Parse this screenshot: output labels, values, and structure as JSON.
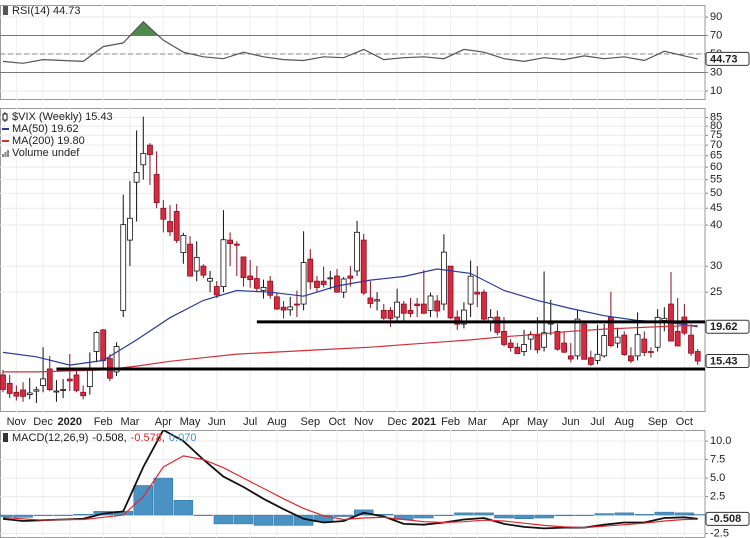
{
  "chart_data": [
    {
      "type": "line",
      "x": [
        0,
        3,
        6,
        9,
        12,
        15,
        18,
        21,
        24,
        27,
        30,
        33,
        36,
        39,
        42,
        45,
        48,
        51,
        54,
        57,
        60,
        63,
        66,
        69,
        72,
        75,
        78,
        81,
        84,
        87,
        90,
        93,
        96,
        99,
        102,
        104
      ],
      "series": [
        {
          "name": "RSI(14) 44.73",
          "color": "#555555",
          "values": [
            42,
            40,
            44,
            43,
            42,
            58,
            62,
            85,
            65,
            52,
            47,
            45,
            52,
            47,
            44,
            43,
            47,
            46,
            55,
            44,
            46,
            47,
            45,
            55,
            52,
            45,
            42,
            46,
            44,
            48,
            45,
            47,
            43,
            53,
            48,
            44.73
          ]
        }
      ],
      "badge": "44.73",
      "overbought": 70,
      "oversold": 30,
      "centerline": 50,
      "fill_color": "#4e8a4e",
      "ylim": [
        0.3,
        103
      ],
      "yticks": [
        10,
        30,
        50,
        70,
        90
      ]
    },
    {
      "type": "candlestick",
      "title": "$VIX (Weekly) 15.43",
      "log": true,
      "up_color": "#ffffff",
      "down_color": "#d62a40",
      "open": [
        14.0,
        13.2,
        12.4,
        12.6,
        12.2,
        12.5,
        13.0,
        14.6,
        12.5,
        12.6,
        13.6,
        14.0,
        12.4,
        12.9,
        16.5,
        19.2,
        15.7,
        14.3,
        22.0,
        36.0,
        54,
        61,
        70,
        57,
        45,
        41,
        44,
        33,
        35,
        29,
        30,
        27,
        26,
        26,
        36,
        35,
        32,
        28,
        27.5,
        25.3,
        27,
        24.2,
        22.5,
        22.1,
        23,
        23,
        31.5,
        27,
        27,
        27.5,
        28,
        25,
        28,
        29,
        36,
        24,
        23.5,
        22,
        22,
        21,
        23,
        22,
        23,
        23,
        22,
        23.5,
        23,
        30,
        21,
        20,
        23,
        25,
        25,
        20.3,
        21,
        19,
        17.5,
        17,
        16.5,
        18,
        18.5,
        17,
        20,
        19,
        17.5,
        16,
        16,
        20,
        15.8,
        15.5,
        16,
        21,
        17.5,
        18.5,
        16,
        16,
        18,
        16.5,
        17,
        20.5,
        23,
        19,
        21,
        18.5,
        16.5
      ],
      "high": [
        14.5,
        14.0,
        13.0,
        13.3,
        13.7,
        12.9,
        17.0,
        16.0,
        13.5,
        13.6,
        16.2,
        14.7,
        13.0,
        16.4,
        19.0,
        19.3,
        16.2,
        17.6,
        49.5,
        54.4,
        77.6,
        85.5,
        71,
        67,
        47.7,
        46,
        46.4,
        37.9,
        37,
        35.7,
        30.4,
        29,
        27,
        44.4,
        38,
        35.7,
        32,
        31.3,
        30,
        27.3,
        28,
        25,
        23.5,
        24.2,
        25.3,
        38.3,
        33.8,
        28,
        29.9,
        29,
        29.4,
        27.8,
        30,
        41.2,
        37.6,
        27,
        25,
        23,
        22.5,
        25.6,
        23.5,
        24,
        24,
        29.2,
        24.9,
        24.5,
        37.5,
        30,
        22,
        23.3,
        31.2,
        30,
        25.5,
        22.2,
        22,
        21,
        18,
        17.5,
        19.2,
        19,
        21,
        28.9,
        23.7,
        20,
        19,
        17.5,
        22,
        20,
        16.6,
        19.9,
        20,
        25.1,
        19.5,
        19,
        17,
        21.7,
        19,
        17,
        22.2,
        22.5,
        28.8,
        24,
        23,
        20,
        16.8
      ],
      "low": [
        12.4,
        11.9,
        11.7,
        11.6,
        11.8,
        11.5,
        12.4,
        12.5,
        11.6,
        11.9,
        12.5,
        12.4,
        11.8,
        12.2,
        15.3,
        14.5,
        13.4,
        13.9,
        21,
        30,
        41,
        55,
        53,
        45,
        38,
        37,
        35.3,
        30.5,
        27.9,
        27,
        27.6,
        25,
        24,
        25,
        30,
        28,
        26,
        25.8,
        25,
        23.9,
        23.9,
        22.1,
        20.8,
        21.2,
        21,
        22,
        25.5,
        25,
        25.8,
        25.5,
        24.9,
        24,
        26,
        28,
        24.5,
        22.4,
        22,
        20.6,
        19.6,
        20.2,
        20.5,
        21,
        21,
        21.5,
        21,
        20.9,
        22,
        20.7,
        19.2,
        19.4,
        21,
        22.5,
        20.5,
        19,
        18.5,
        17.1,
        16.5,
        16.2,
        16,
        16.7,
        16.3,
        16.5,
        18.5,
        16.6,
        16.3,
        15.3,
        15.6,
        15.6,
        14.9,
        15.1,
        15.8,
        17,
        16.9,
        16,
        15.2,
        15.5,
        16,
        15.8,
        16.5,
        19,
        18,
        17.5,
        18.5,
        16,
        15
      ],
      "close": [
        12.65,
        12.3,
        12.07,
        12.05,
        12.34,
        12.62,
        13.62,
        12.63,
        12.51,
        12.65,
        13.43,
        12.56,
        12.1,
        14.56,
        18.84,
        15.47,
        13.68,
        17.08,
        40.11,
        41.94,
        57.83,
        66.04,
        65.54,
        46.8,
        41.67,
        38.15,
        35.93,
        37.19,
        27.98,
        31.89,
        28.16,
        27.51,
        24.52,
        36.09,
        35.12,
        34.73,
        27.68,
        27.29,
        25.68,
        25.84,
        24.46,
        22.21,
        22.05,
        22.54,
        22.96,
        30.75,
        26.87,
        25.83,
        26.38,
        27.63,
        25.0,
        27.41,
        27.55,
        38.02,
        24.86,
        23.1,
        23.7,
        20.84,
        20.79,
        23.31,
        21.57,
        21.53,
        22.75,
        21.56,
        24.34,
        21.91,
        33.09,
        20.87,
        19.97,
        22.05,
        27.95,
        24.66,
        20.69,
        20.95,
        18.86,
        17.33,
        16.95,
        16.25,
        17.33,
        18.61,
        16.69,
        18.81,
        20.15,
        16.76,
        16.42,
        15.65,
        20.7,
        15.62,
        15.07,
        16.18,
        18.45,
        17.2,
        18.24,
        16.15,
        15.45,
        18.56,
        16.39,
        16.41,
        20.95,
        20.81,
        17.75,
        17.15,
        18.77,
        16.3,
        15.43
      ],
      "series": [
        {
          "name": "MA(50) 19.62",
          "color": "#2a3a9a",
          "x": [
            0,
            5,
            10,
            15,
            20,
            25,
            30,
            35,
            40,
            45,
            50,
            55,
            60,
            65,
            70,
            75,
            80,
            85,
            90,
            95,
            100,
            104
          ],
          "values": [
            16.4,
            15.9,
            15.0,
            15.5,
            17.9,
            20.9,
            23.6,
            25.3,
            25.0,
            24.3,
            26.1,
            27.2,
            27.9,
            29.4,
            28.5,
            25.3,
            23.6,
            22.3,
            21.2,
            20.5,
            20.2,
            19.62
          ]
        },
        {
          "name": "MA(200) 19.80",
          "color": "#d0303a",
          "x": [
            0,
            5,
            10,
            15,
            20,
            25,
            30,
            35,
            40,
            45,
            50,
            55,
            60,
            65,
            70,
            75,
            80,
            85,
            90,
            95,
            100,
            104
          ],
          "values": [
            14.3,
            14.3,
            14.4,
            14.5,
            14.9,
            15.4,
            15.8,
            16.2,
            16.4,
            16.6,
            16.8,
            17.0,
            17.3,
            17.6,
            17.9,
            18.3,
            18.6,
            19.0,
            19.3,
            19.5,
            19.7,
            19.8
          ]
        }
      ],
      "note": "Volume undef",
      "badges": [
        "19.62",
        "15.43"
      ],
      "trendlines": [
        {
          "value": 20.3,
          "start": 38
        },
        {
          "value": 14.6,
          "start": 8
        }
      ],
      "ylim": [
        10.8,
        90.8
      ],
      "yticks": [
        25,
        30,
        40,
        45,
        50,
        55,
        60,
        65,
        70,
        75,
        80,
        85
      ],
      "grid": true,
      "xticks": [
        {
          "value": 2,
          "label": "Nov"
        },
        {
          "value": 6,
          "label": "Dec"
        },
        {
          "value": 10,
          "label": "2020"
        },
        {
          "value": 15,
          "label": "Feb"
        },
        {
          "value": 19,
          "label": "Mar"
        },
        {
          "value": 24,
          "label": "Apr"
        },
        {
          "value": 28,
          "label": "May"
        },
        {
          "value": 32,
          "label": "Jun"
        },
        {
          "value": 37,
          "label": "Jul"
        },
        {
          "value": 41,
          "label": "Aug"
        },
        {
          "value": 46,
          "label": "Sep"
        },
        {
          "value": 50,
          "label": "Oct"
        },
        {
          "value": 54,
          "label": "Nov"
        },
        {
          "value": 59,
          "label": "Dec"
        },
        {
          "value": 63,
          "label": "2021"
        },
        {
          "value": 67,
          "label": "Feb"
        },
        {
          "value": 71,
          "label": "Mar"
        },
        {
          "value": 76,
          "label": "Apr"
        },
        {
          "value": 80,
          "label": "May"
        },
        {
          "value": 85,
          "label": "Jun"
        },
        {
          "value": 89,
          "label": "Jul"
        },
        {
          "value": 93,
          "label": "Aug"
        },
        {
          "value": 98,
          "label": "Sep"
        },
        {
          "value": 102,
          "label": "Oct"
        }
      ]
    },
    {
      "type": "macd",
      "title": "MACD(12,26,9)",
      "x": [
        0,
        3,
        6,
        9,
        12,
        15,
        18,
        21,
        24,
        27,
        30,
        33,
        36,
        39,
        42,
        45,
        48,
        51,
        54,
        57,
        60,
        63,
        66,
        69,
        72,
        75,
        78,
        81,
        84,
        87,
        90,
        93,
        96,
        99,
        102,
        104
      ],
      "series": [
        {
          "name": "-0.508,",
          "color": "#111111",
          "values": [
            -0.5,
            -0.8,
            -0.7,
            -0.6,
            -0.5,
            0.2,
            0.5,
            6.5,
            11.5,
            10.0,
            7.5,
            5.2,
            3.8,
            2.2,
            0.8,
            -0.5,
            -1.0,
            -0.8,
            0.3,
            -0.2,
            -1.2,
            -1.3,
            -1.0,
            -0.6,
            -0.4,
            -1.2,
            -1.6,
            -1.8,
            -1.7,
            -1.7,
            -1.3,
            -1.0,
            -1.0,
            -0.4,
            -0.3,
            -0.508
          ]
        },
        {
          "name": "-0.578,",
          "color": "#e0282e",
          "values": [
            -0.3,
            -0.5,
            -0.7,
            -0.6,
            -0.6,
            -0.3,
            0.0,
            2.5,
            6.5,
            8.0,
            7.5,
            6.4,
            5.0,
            3.6,
            2.2,
            0.9,
            -0.1,
            -0.6,
            -0.4,
            -0.3,
            -0.6,
            -0.9,
            -1.0,
            -0.9,
            -0.7,
            -0.8,
            -1.1,
            -1.4,
            -1.6,
            -1.7,
            -1.5,
            -1.3,
            -1.1,
            -0.8,
            -0.6,
            -0.578
          ]
        },
        {
          "name": "0.070",
          "color": "#4a92c4",
          "kind": "histogram",
          "values": [
            -0.2,
            -0.3,
            0,
            0,
            0.1,
            0.5,
            0.5,
            4.0,
            5.0,
            2.0,
            0,
            -1.2,
            -1.2,
            -1.4,
            -1.4,
            -1.4,
            -0.9,
            -0.2,
            0.7,
            0.1,
            -0.6,
            -0.4,
            0,
            0.3,
            0.3,
            -0.4,
            -0.5,
            -0.4,
            -0.1,
            0,
            0.2,
            0.3,
            0.1,
            0.4,
            0.3,
            0.07
          ]
        }
      ],
      "badge": "-0.508",
      "ylim": [
        -3.1,
        11.5
      ],
      "yticks": [
        -2.5,
        2.5,
        {
          "value": 5,
          "label": "5.0"
        },
        7.5,
        {
          "value": 10,
          "label": "10.0"
        }
      ]
    }
  ]
}
